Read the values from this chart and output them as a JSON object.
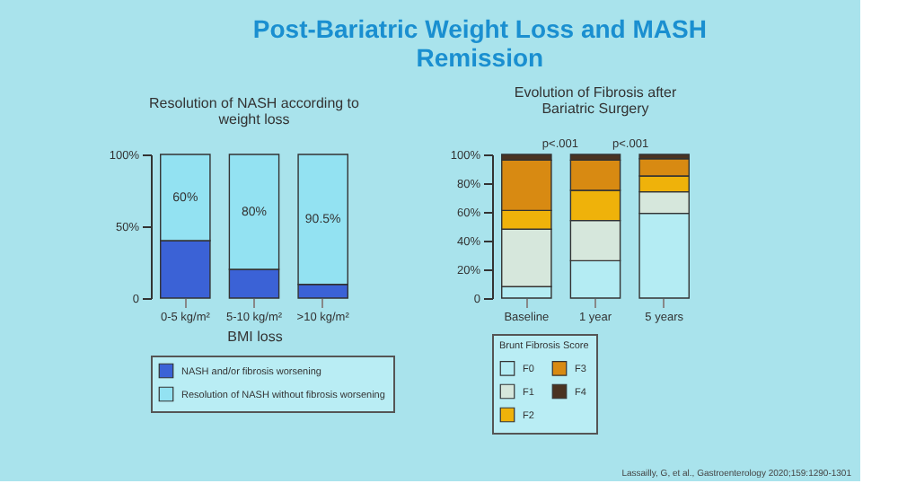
{
  "chart_data": [
    {
      "type": "bar",
      "stacked": true,
      "title": "Post-Bariatric Weight Loss and MASH Remission",
      "subtitle": "Resolution of NASH according to weight loss",
      "xlabel": "BMI loss",
      "categories": [
        "0-5 kg/m²",
        "5-10 kg/m²",
        ">10 kg/m²"
      ],
      "series": [
        {
          "name": "NASH and/or fibrosis worsening",
          "color": "#3b62d6",
          "values": [
            40,
            20,
            9.5
          ]
        },
        {
          "name": "Resolution of NASH without fibrosis worsening",
          "color": "#93e2f2",
          "values": [
            60,
            80,
            90.5
          ],
          "value_labels": [
            "60%",
            "80%",
            "90.5%"
          ]
        }
      ],
      "ylim": [
        0,
        100
      ],
      "yticks": [
        {
          "value": 0,
          "label": "0"
        },
        {
          "value": 50,
          "label": "50%"
        },
        {
          "value": 100,
          "label": "100%"
        }
      ],
      "legend": "bottom",
      "grid": false
    },
    {
      "type": "bar",
      "stacked": true,
      "title": "Evolution of Fibrosis after Bariatric Surgery",
      "legend_title": "Brunt Fibrosis Score",
      "categories": [
        "Baseline",
        "1 year",
        "5 years"
      ],
      "series": [
        {
          "name": "F0",
          "color": "#b4ecf3",
          "values": [
            8,
            26,
            59
          ]
        },
        {
          "name": "F1",
          "color": "#d6e7dc",
          "values": [
            40,
            28,
            15
          ]
        },
        {
          "name": "F2",
          "color": "#efb20a",
          "values": [
            13,
            21,
            11
          ]
        },
        {
          "name": "F3",
          "color": "#d88a12",
          "values": [
            35,
            21,
            12
          ]
        },
        {
          "name": "F4",
          "color": "#4a3322",
          "values": [
            4,
            4,
            3
          ]
        }
      ],
      "ylim": [
        0,
        100
      ],
      "yticks": [
        {
          "value": 0,
          "label": "0"
        },
        {
          "value": 20,
          "label": "20%"
        },
        {
          "value": 40,
          "label": "40%"
        },
        {
          "value": 60,
          "label": "60%"
        },
        {
          "value": 80,
          "label": "80%"
        },
        {
          "value": 100,
          "label": "100%"
        }
      ],
      "legend": "bottom",
      "grid": false,
      "annotations": [
        "p<.001",
        "p<.001",
        "Lassailly, G, et al., Gastroenterology 2020;159:1290-1301"
      ]
    }
  ]
}
